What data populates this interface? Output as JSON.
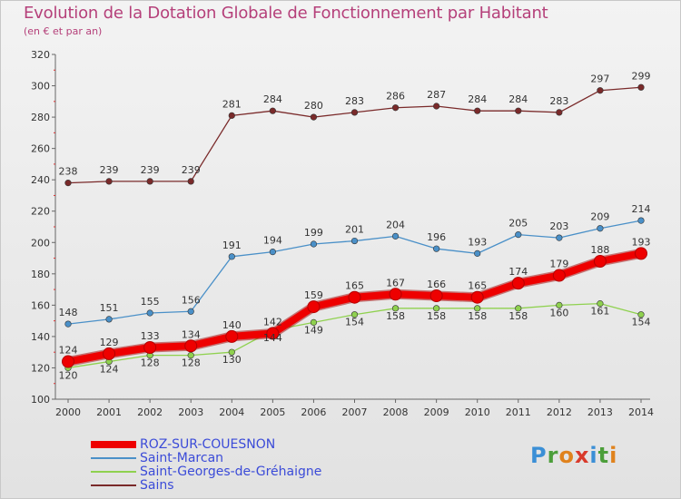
{
  "title": "Evolution de la Dotation Globale de Fonctionnement par Habitant",
  "subtitle": "(en € et par an)",
  "logo_text": "Proxiti",
  "chart_data": {
    "type": "line",
    "x": [
      2000,
      2001,
      2002,
      2003,
      2004,
      2005,
      2006,
      2007,
      2008,
      2009,
      2010,
      2011,
      2012,
      2013,
      2014
    ],
    "y_ticks": [
      100,
      120,
      140,
      160,
      180,
      200,
      220,
      240,
      260,
      280,
      300,
      320
    ],
    "ylim": [
      100,
      320
    ],
    "grid": false,
    "legend_position": "bottom-left",
    "series": [
      {
        "name": "ROZ-SUR-COUESNON",
        "color": "#ee0000",
        "values": [
          124,
          129,
          133,
          134,
          140,
          142,
          159,
          165,
          167,
          166,
          165,
          174,
          179,
          188,
          193
        ],
        "labels": [
          "124",
          "129",
          "133",
          "134",
          "140",
          "142",
          "159",
          "165",
          "167",
          "166",
          "165",
          "174",
          "179",
          "188",
          "193"
        ]
      },
      {
        "name": "Saint-Marcan",
        "color": "#4a90c8",
        "values": [
          148,
          151,
          155,
          156,
          191,
          194,
          199,
          201,
          204,
          196,
          193,
          205,
          203,
          209,
          214
        ],
        "labels": [
          "148",
          "151",
          "155",
          "156",
          "191",
          "194",
          "199",
          "201",
          "204",
          "196",
          "193",
          "205",
          "203",
          "209",
          "214"
        ]
      },
      {
        "name": "Saint-Georges-de-Gréhaigne",
        "color": "#8fd14f",
        "values": [
          120,
          124,
          128,
          128,
          130,
          144,
          149,
          154,
          158,
          158,
          158,
          158,
          160,
          161,
          154
        ],
        "labels": [
          "120",
          "124",
          "128",
          "128",
          "130",
          "144",
          "149",
          "154",
          "158",
          "158",
          "158",
          "158",
          "160",
          "161",
          "154"
        ]
      },
      {
        "name": "Sains",
        "color": "#7a2a2a",
        "values": [
          238,
          239,
          239,
          239,
          281,
          284,
          280,
          283,
          286,
          287,
          284,
          284,
          283,
          297,
          299
        ],
        "labels": [
          "238",
          "239",
          "239",
          "239",
          "281",
          "284",
          "280",
          "283",
          "286",
          "287",
          "284",
          "284",
          "283",
          "297",
          "299"
        ]
      }
    ]
  }
}
